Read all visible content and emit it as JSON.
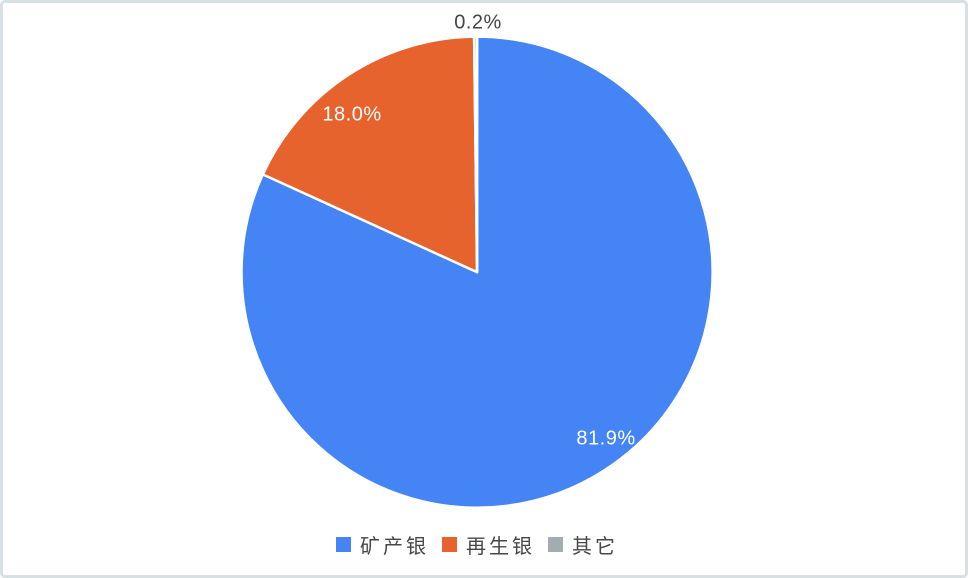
{
  "chart_data": {
    "type": "pie",
    "title": "",
    "legend_position": "bottom",
    "start_angle": "top",
    "direction": "clockwise",
    "slice_border_color": "#ffffff",
    "inside_label_color": "#ffffff",
    "outside_label_color": "#454545",
    "series": [
      {
        "name": "矿产银",
        "value": 81.9,
        "label": "81.9%",
        "color": "#4484f4",
        "label_placement": "inside"
      },
      {
        "name": "再生银",
        "value": 18.0,
        "label": "18.0%",
        "color": "#e7632d",
        "label_placement": "inside"
      },
      {
        "name": "其它",
        "value": 0.2,
        "label": "0.2%",
        "color": "#a2adb2",
        "label_placement": "outside"
      }
    ]
  }
}
